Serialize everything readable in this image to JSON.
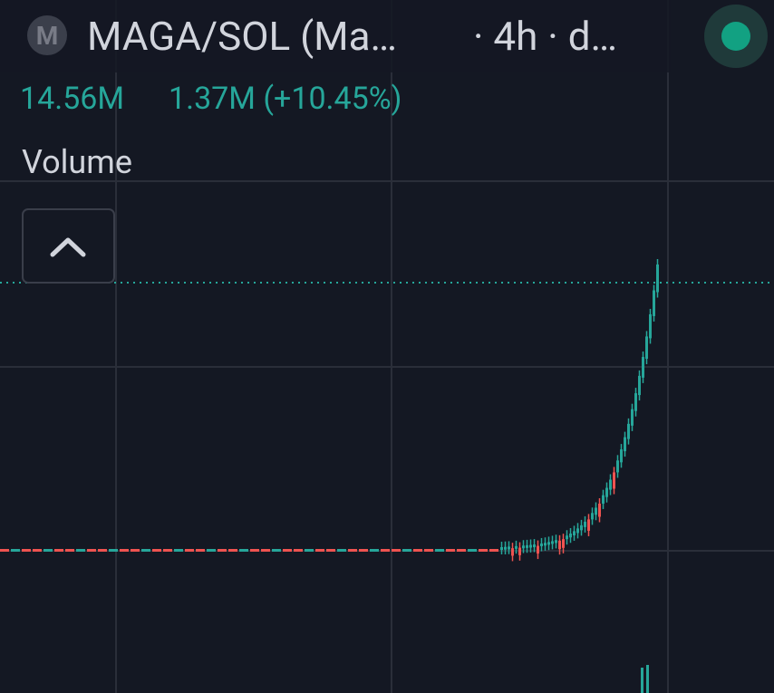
{
  "header": {
    "avatar": "M",
    "title": "MAGA/SOL (Ma…",
    "subtitle": "· 4h · d…"
  },
  "stats": {
    "first": "14.56M",
    "second": "1.37M (+10.45%)"
  },
  "indicator": "Volume"
}
